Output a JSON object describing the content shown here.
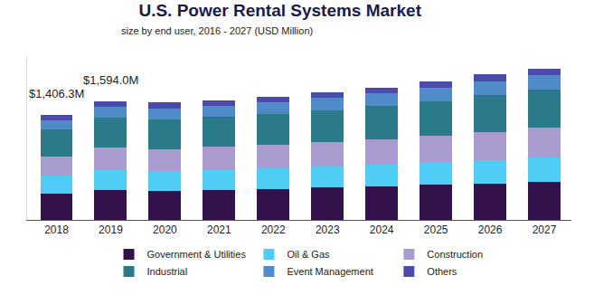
{
  "chart_data": {
    "type": "bar",
    "title": "U.S. Power Rental Systems Market",
    "subtitle": "size by end user, 2016 - 2027 (USD Million)",
    "categories": [
      "2018",
      "2019",
      "2020",
      "2021",
      "2022",
      "2023",
      "2024",
      "2025",
      "2026",
      "2027"
    ],
    "series": [
      {
        "name": "Government & Utilities",
        "color": "#33114a",
        "values": [
          346.9,
          398.5,
          387,
          406,
          416,
          435,
          454,
          473,
          491,
          510
        ]
      },
      {
        "name": "Oil & Gas",
        "color": "#4fcdf4",
        "values": [
          243.8,
          275.2,
          265,
          265,
          274,
          284,
          293,
          302,
          312,
          331
        ]
      },
      {
        "name": "Construction",
        "color": "#a99bcf",
        "values": [
          262.5,
          303.6,
          302,
          312,
          321,
          331,
          340,
          359,
          378,
          397
        ]
      },
      {
        "name": "Industrial",
        "color": "#2b7a8a",
        "values": [
          356.3,
          398.5,
          397,
          406,
          416,
          425,
          444,
          463,
          491,
          510
        ]
      },
      {
        "name": "Event Management",
        "color": "#4f8ac9",
        "values": [
          121.9,
          142.3,
          142,
          142,
          151,
          161,
          170,
          180,
          189,
          198
        ]
      },
      {
        "name": "Others",
        "color": "#4b4bab",
        "values": [
          75,
          75.9,
          85,
          76,
          76,
          76,
          76,
          85,
          95,
          85
        ]
      }
    ],
    "annotations": [
      {
        "x": "2018",
        "y": 1406.3,
        "text": "$1,406.3M"
      },
      {
        "x": "2019",
        "y": 1594.0,
        "text": "$1,594.0M"
      }
    ],
    "ylim": [
      0,
      2200
    ],
    "stacked": true,
    "grid": false,
    "legend": "bottom",
    "tick_labels": "x",
    "data_labels": false
  }
}
